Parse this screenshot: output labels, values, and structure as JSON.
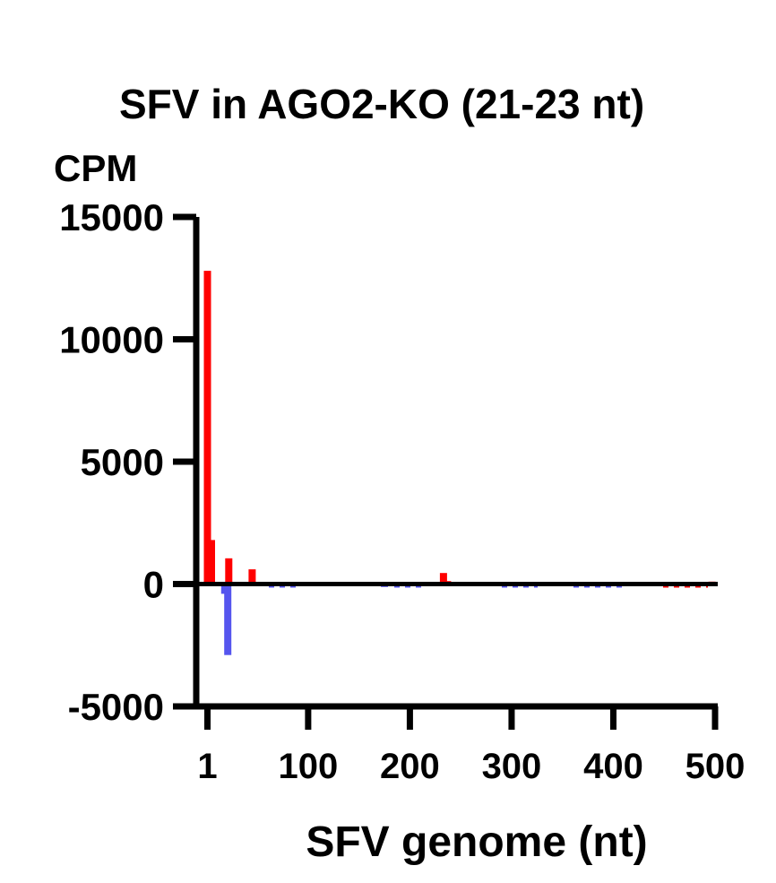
{
  "chart_data": {
    "type": "bar",
    "title": "SFV in AGO2-KO (21-23 nt)",
    "ylabel": "CPM",
    "xlabel": "SFV genome (nt)",
    "xlim": [
      -10,
      500
    ],
    "ylim": [
      -5000,
      15000
    ],
    "xticks": [
      1,
      100,
      200,
      300,
      400,
      500
    ],
    "yticks": [
      -5000,
      0,
      5000,
      10000,
      15000
    ],
    "grid": false,
    "legend": "none",
    "series": [
      {
        "color": "#ff0000",
        "points": [
          {
            "x": 1,
            "y": 12800
          },
          {
            "x": 5,
            "y": 1800
          },
          {
            "x": 22,
            "y": 1050
          },
          {
            "x": 45,
            "y": 600
          },
          {
            "x": 100,
            "y": 80
          },
          {
            "x": 150,
            "y": 60
          },
          {
            "x": 233,
            "y": 450
          },
          {
            "x": 237,
            "y": 120
          },
          {
            "x": 450,
            "y": 40
          },
          {
            "x": 480,
            "y": 60
          },
          {
            "x": 497,
            "y": 100
          }
        ]
      },
      {
        "color": "#5555ee",
        "points": [
          {
            "x": 18,
            "y": -400
          },
          {
            "x": 21,
            "y": -2900
          },
          {
            "x": 55,
            "y": -40
          },
          {
            "x": 130,
            "y": -50
          },
          {
            "x": 175,
            "y": -120
          },
          {
            "x": 300,
            "y": -40
          },
          {
            "x": 360,
            "y": -40
          },
          {
            "x": 420,
            "y": -30
          },
          {
            "x": 470,
            "y": -30
          }
        ]
      }
    ]
  }
}
